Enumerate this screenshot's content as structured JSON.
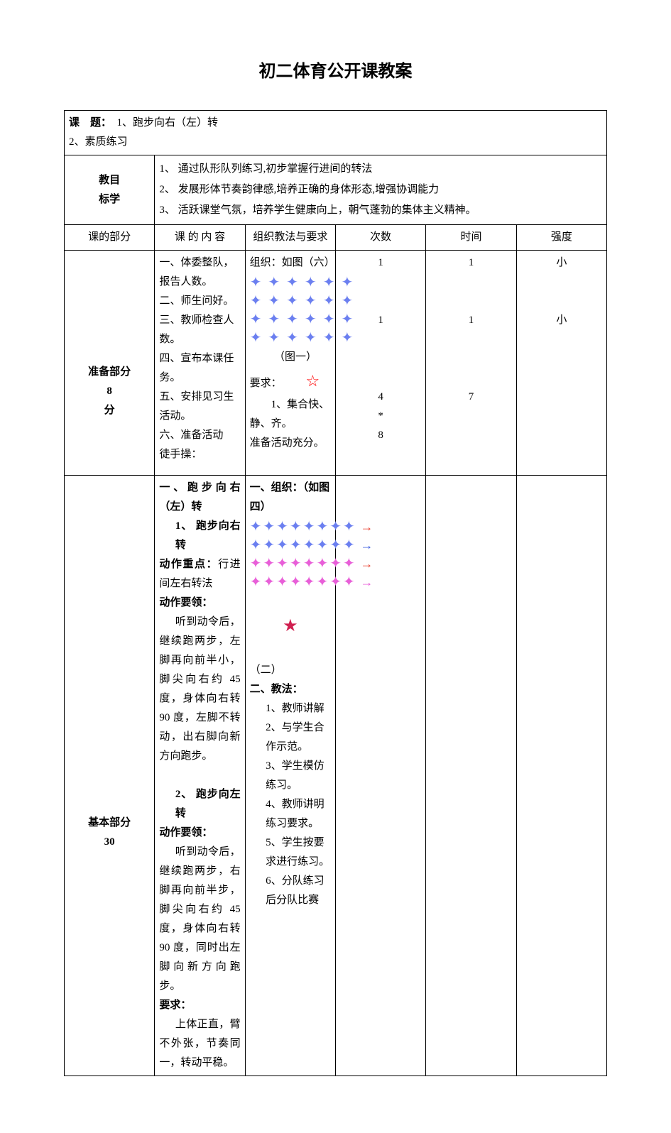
{
  "title": "初二体育公开课教案",
  "topic_label": "课　题：",
  "topic_value": "　1、跑步向右（左）转　2、素质练习",
  "goals_label": "教目\n标学",
  "goals": [
    "1、 通过队形队列练习,初步掌握行进间的转法",
    "2、 发展形体节奏韵律感,培养正确的身体形态,增强协调能力",
    "3、 活跃课堂气氛，培养学生健康向上，朝气蓬勃的集体主义精神。"
  ],
  "header": {
    "part": "课的部分",
    "content": "课 的 内 容",
    "org": "组织教法与要求",
    "count": "次数",
    "time": "时间",
    "intensity": "强度"
  },
  "prep": {
    "label_top": "准备部分",
    "label_mid": "8",
    "label_bot": "分",
    "content_lines": [
      "一、体委整队，报告人数。",
      "二、师生问好。",
      "三、教师检查人数。",
      "四、宣布本课任务。",
      "五、安排见习生活动。",
      "六、准备活动",
      "徒手操："
    ],
    "org_title": "组织：如图（六）",
    "fig_label": "（图一）",
    "req_label": "要求：",
    "req_lines": [
      "　　1、集合快、静、齐。",
      "准备活动充分。"
    ],
    "counts": [
      "1",
      "",
      "",
      "1",
      "",
      "",
      "",
      "4",
      "*",
      "8"
    ],
    "times": [
      "1",
      "",
      "",
      "1",
      "",
      "",
      "",
      "7"
    ],
    "intensities": [
      "小",
      "",
      "",
      "小"
    ]
  },
  "main": {
    "label_top": "基本部分",
    "label_mid": "30",
    "heading1": "一、跑步向右（左）转",
    "sub1_title": "1、 跑步向右转",
    "sub1_focus_label": "动作重点：",
    "sub1_focus": "行进间左右转法",
    "sub1_tech_label": "动作要领：",
    "sub1_tech": "听到动令后，继续跑两步，左脚再向前半小，脚尖向右约 45度，身体向右转 90 度，左脚不转动，出右脚向新方向跑步。",
    "sub2_title": "2、 跑步向左转",
    "sub2_tech_label": "动作要领：",
    "sub2_tech": "听到动令后，继续跑两步，右脚再向前半步，脚尖向右约 45度，身体向右转 90 度，同时出左脚向新方向跑步。",
    "req_label": "要求：",
    "req_text": "上体正直，臂不外张，节奏同一，转动平稳。",
    "org_title": "一、组织：（如图四）",
    "fig2_label": "（二）",
    "teach_title": "二、教法：",
    "teach_steps": [
      "1、教师讲解",
      "2、与学生合作示范。",
      "3、学生模仿练习。",
      "4、教师讲明练习要求。",
      "5、学生按要求进行练习。",
      "6、分队练习后分队比赛"
    ]
  },
  "colors": {
    "sparkle_blue": "#6b7ff0",
    "sparkle_pink": "#e85fd8",
    "star_red": "#ff0000",
    "star_filled": "#d02050",
    "arrow_red": "#e84030",
    "arrow_blue": "#4060e0"
  }
}
